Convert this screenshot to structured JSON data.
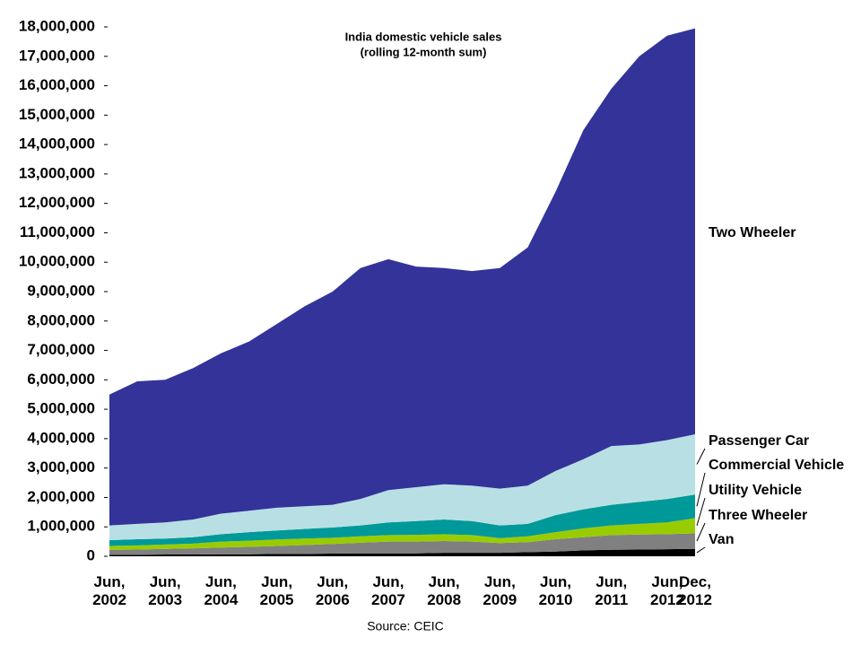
{
  "chart_data": {
    "type": "stacked-area",
    "title": "India domestic vehicle sales",
    "subtitle": "(rolling 12-month sum)",
    "source": "Source: CEIC",
    "categories": [
      "Jun, 2002",
      null,
      "Jun, 2003",
      null,
      "Jun, 2004",
      null,
      "Jun, 2005",
      null,
      "Jun, 2006",
      null,
      "Jun, 2007",
      null,
      "Jun, 2008",
      null,
      "Jun, 2009",
      null,
      "Jun, 2010",
      null,
      "Jun, 2011",
      null,
      "Jun, 2012",
      "Dec, 2012"
    ],
    "series": [
      {
        "name": "Van",
        "color": "#000000",
        "values": [
          50000,
          50000,
          60000,
          60000,
          70000,
          70000,
          80000,
          80000,
          90000,
          100000,
          100000,
          100000,
          120000,
          120000,
          120000,
          140000,
          160000,
          200000,
          220000,
          230000,
          240000,
          250000
        ]
      },
      {
        "name": "Three Wheeler",
        "color": "#808080",
        "values": [
          170000,
          180000,
          190000,
          210000,
          230000,
          250000,
          270000,
          300000,
          330000,
          360000,
          400000,
          400000,
          400000,
          380000,
          330000,
          340000,
          420000,
          450000,
          500000,
          510000,
          510000,
          530000
        ]
      },
      {
        "name": "Utility Vehicle",
        "color": "#99cc00",
        "values": [
          130000,
          140000,
          150000,
          160000,
          200000,
          210000,
          220000,
          220000,
          210000,
          220000,
          220000,
          230000,
          230000,
          220000,
          170000,
          200000,
          240000,
          300000,
          330000,
          360000,
          400000,
          520000
        ]
      },
      {
        "name": "Commercial Vehicle",
        "color": "#009999",
        "values": [
          200000,
          210000,
          200000,
          220000,
          250000,
          290000,
          310000,
          330000,
          350000,
          370000,
          430000,
          470000,
          500000,
          480000,
          430000,
          420000,
          580000,
          650000,
          700000,
          750000,
          800000,
          800000
        ]
      },
      {
        "name": "Passenger Car",
        "color": "#b8e0e4",
        "values": [
          500000,
          520000,
          550000,
          600000,
          700000,
          730000,
          770000,
          770000,
          770000,
          900000,
          1100000,
          1150000,
          1200000,
          1200000,
          1250000,
          1300000,
          1500000,
          1700000,
          2000000,
          1950000,
          2000000,
          2050000
        ]
      },
      {
        "name": "Two Wheeler",
        "color": "#333399",
        "values": [
          4450000,
          4850000,
          4850000,
          5150000,
          5450000,
          5750000,
          6250000,
          6800000,
          7250000,
          7850000,
          7850000,
          7500000,
          7350000,
          7300000,
          7500000,
          8100000,
          9500000,
          11200000,
          12150000,
          13200000,
          13750000,
          13800000
        ]
      }
    ],
    "ylim": [
      0,
      18000000
    ],
    "yticks": [
      0,
      {
        "value": 1000000,
        "label": "1,000,000"
      },
      {
        "value": 2000000,
        "label": "2,000,000"
      },
      {
        "value": 3000000,
        "label": "3,000,000"
      },
      {
        "value": 4000000,
        "label": "4,000,000"
      },
      {
        "value": 5000000,
        "label": "5,000,000"
      },
      {
        "value": 6000000,
        "label": "6,000,000"
      },
      {
        "value": 7000000,
        "label": "7,000,000"
      },
      {
        "value": 8000000,
        "label": "8,000,000"
      },
      {
        "value": 9000000,
        "label": "9,000,000"
      },
      {
        "value": 10000000,
        "label": "10,000,000"
      },
      {
        "value": 11000000,
        "label": "11,000,000"
      },
      {
        "value": 12000000,
        "label": "12,000,000"
      },
      {
        "value": 13000000,
        "label": "13,000,000"
      },
      {
        "value": 14000000,
        "label": "14,000,000"
      },
      {
        "value": 15000000,
        "label": "15,000,000"
      },
      {
        "value": 16000000,
        "label": "16,000,000"
      },
      {
        "value": 17000000,
        "label": "17,000,000"
      },
      {
        "value": 18000000,
        "label": "18,000,000"
      }
    ],
    "grid": false
  }
}
